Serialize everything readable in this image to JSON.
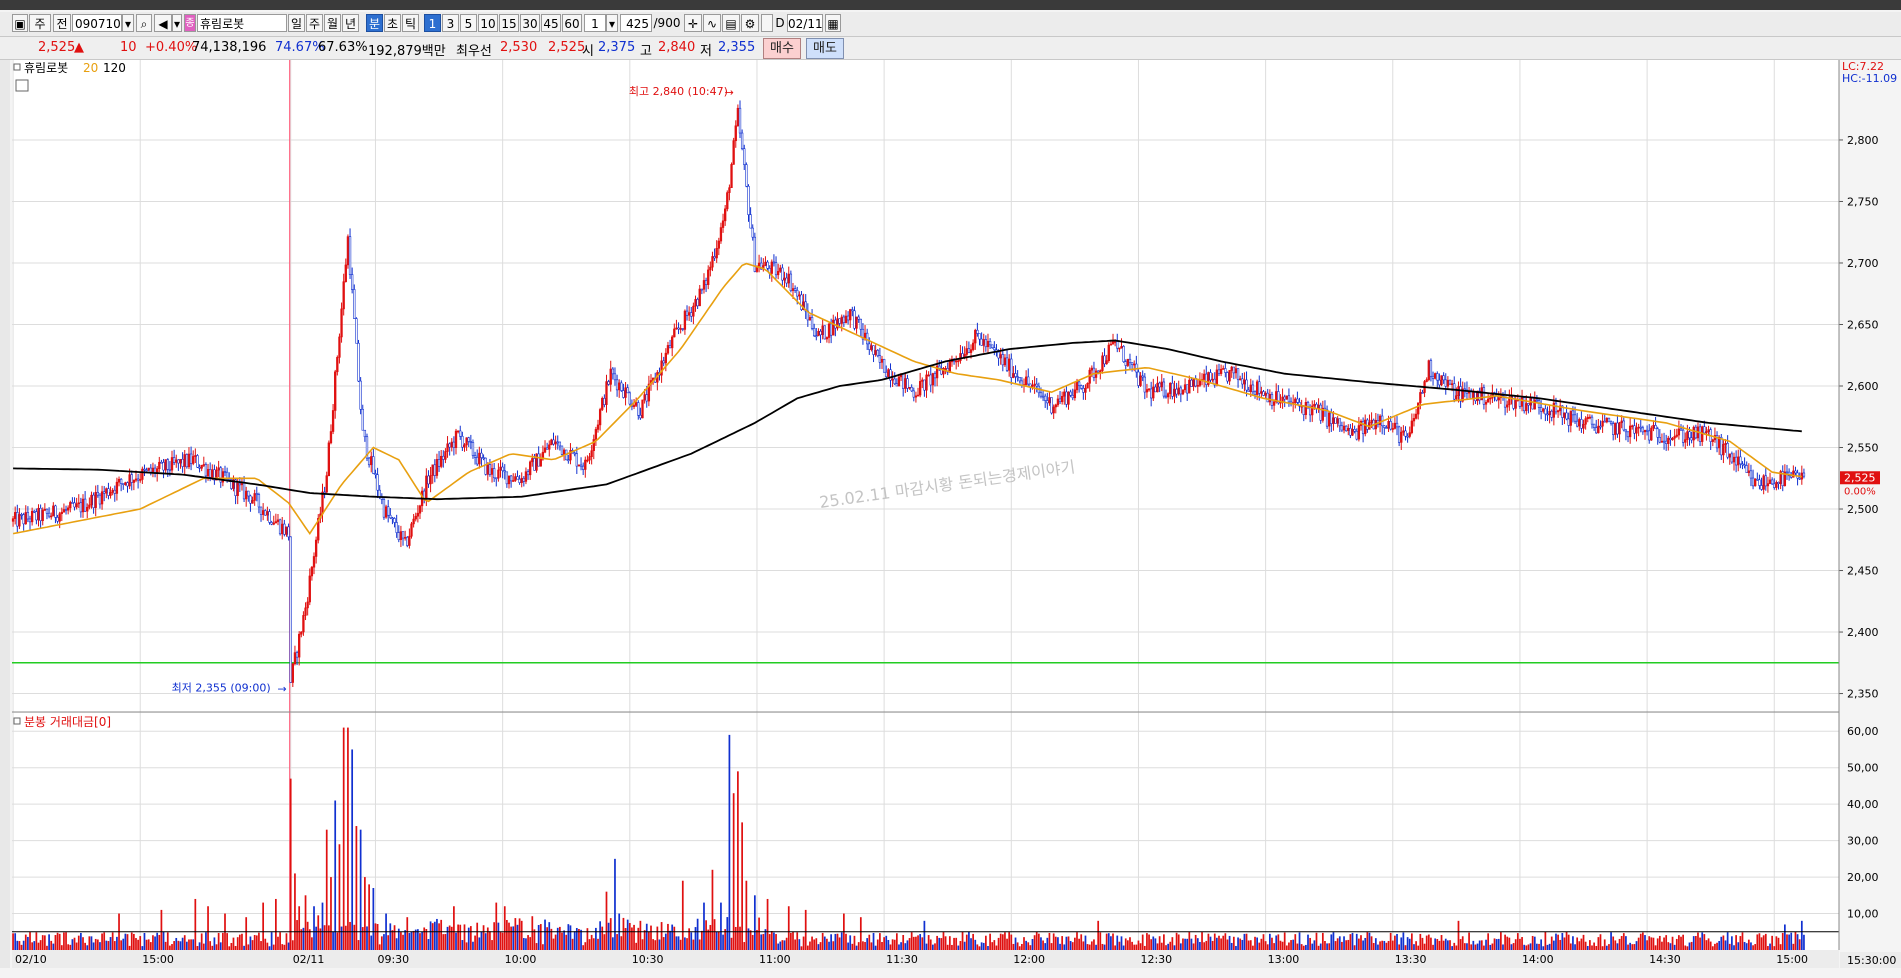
{
  "toolbar": {
    "period_tab": "주",
    "mode_tab": "전",
    "stock_code": "090710",
    "stock_name": "휴림로봇",
    "stock_badge": "종",
    "period_buttons": [
      "일",
      "주",
      "월",
      "년",
      "분",
      "초",
      "틱"
    ],
    "interval_buttons": [
      "1",
      "3",
      "5",
      "10",
      "15",
      "30",
      "45",
      "60"
    ],
    "interval_value": "1",
    "count_value": "425",
    "count_total": "/900",
    "date_value": "02/11",
    "checkbox_label": "D"
  },
  "quote": {
    "price": "2,525",
    "change_arrow": "▲",
    "change": "10",
    "change_pct": "+0.40%",
    "volume": "74,138,196",
    "ratio1": "74.67%",
    "ratio2": "67.63%",
    "amount": "192,879백만",
    "best_label": "최우선",
    "ask": "2,530",
    "bid": "2,525",
    "open_label": "시",
    "open": "2,375",
    "high_label": "고",
    "high": "2,840",
    "low_label": "저",
    "low": "2,355",
    "buy_button": "매수",
    "sell_button": "매도"
  },
  "colors": {
    "up": "#e01010",
    "down": "#1030d0",
    "ma20": "#e8a010",
    "ma120": "#000000",
    "support": "#22cc22",
    "grid": "#dddddd",
    "price_tag": "#e01010"
  },
  "chart_data": {
    "type": "candlestick",
    "legend": {
      "name": "휴림로봇",
      "ma_short": "20",
      "ma_long": "120"
    },
    "ylim": [
      2335,
      2865
    ],
    "y_ticks": [
      "2,350",
      "2,400",
      "2,450",
      "2,500",
      "2,550",
      "2,600",
      "2,650",
      "2,700",
      "2,750",
      "2,800"
    ],
    "y_tick_values": [
      2350,
      2400,
      2450,
      2500,
      2550,
      2600,
      2650,
      2700,
      2750,
      2800
    ],
    "right_labels": {
      "lc": "LC:7.22",
      "hc": "HC:-11.09"
    },
    "current_price_tag": "2,525",
    "current_pct": "0.00%",
    "current_price": 2525,
    "high_annotation": "최고 2,840 (10:47)",
    "low_annotation": "최저 2,355 (09:00)",
    "high_point": {
      "time": "10:47",
      "value": 2840
    },
    "low_point": {
      "time": "09:00",
      "value": 2355
    },
    "support_level": 2375,
    "watermark": "25.02.11 마감시황 돈되는경제이야기",
    "x_labels": [
      "02/10",
      "15:00",
      "02/11",
      "09:30",
      "10:00",
      "10:30",
      "11:00",
      "11:30",
      "12:00",
      "12:30",
      "13:00",
      "13:30",
      "14:00",
      "14:30",
      "15:00"
    ],
    "session_end_label": "15:30:00",
    "price_anchors": [
      {
        "t": 0,
        "v": 2490
      },
      {
        "t": 30,
        "v": 2500
      },
      {
        "t": 55,
        "v": 2525
      },
      {
        "t": 85,
        "v": 2540
      },
      {
        "t": 112,
        "v": 2510
      },
      {
        "t": 130,
        "v": 2480
      },
      {
        "t": 131,
        "v": 2360
      },
      {
        "t": 138,
        "v": 2420
      },
      {
        "t": 148,
        "v": 2530
      },
      {
        "t": 158,
        "v": 2720
      },
      {
        "t": 165,
        "v": 2560
      },
      {
        "t": 175,
        "v": 2500
      },
      {
        "t": 185,
        "v": 2470
      },
      {
        "t": 196,
        "v": 2525
      },
      {
        "t": 210,
        "v": 2560
      },
      {
        "t": 225,
        "v": 2530
      },
      {
        "t": 240,
        "v": 2525
      },
      {
        "t": 255,
        "v": 2555
      },
      {
        "t": 270,
        "v": 2535
      },
      {
        "t": 282,
        "v": 2610
      },
      {
        "t": 296,
        "v": 2580
      },
      {
        "t": 312,
        "v": 2640
      },
      {
        "t": 326,
        "v": 2680
      },
      {
        "t": 336,
        "v": 2740
      },
      {
        "t": 342,
        "v": 2820
      },
      {
        "t": 350,
        "v": 2700
      },
      {
        "t": 365,
        "v": 2690
      },
      {
        "t": 380,
        "v": 2640
      },
      {
        "t": 395,
        "v": 2660
      },
      {
        "t": 408,
        "v": 2620
      },
      {
        "t": 425,
        "v": 2595
      },
      {
        "t": 440,
        "v": 2615
      },
      {
        "t": 455,
        "v": 2640
      },
      {
        "t": 470,
        "v": 2615
      },
      {
        "t": 490,
        "v": 2585
      },
      {
        "t": 505,
        "v": 2600
      },
      {
        "t": 520,
        "v": 2635
      },
      {
        "t": 535,
        "v": 2595
      },
      {
        "t": 555,
        "v": 2600
      },
      {
        "t": 575,
        "v": 2610
      },
      {
        "t": 595,
        "v": 2590
      },
      {
        "t": 615,
        "v": 2580
      },
      {
        "t": 632,
        "v": 2560
      },
      {
        "t": 645,
        "v": 2575
      },
      {
        "t": 658,
        "v": 2555
      },
      {
        "t": 668,
        "v": 2615
      },
      {
        "t": 680,
        "v": 2595
      },
      {
        "t": 700,
        "v": 2590
      },
      {
        "t": 720,
        "v": 2585
      },
      {
        "t": 740,
        "v": 2570
      },
      {
        "t": 760,
        "v": 2565
      },
      {
        "t": 780,
        "v": 2560
      },
      {
        "t": 800,
        "v": 2560
      },
      {
        "t": 812,
        "v": 2540
      },
      {
        "t": 822,
        "v": 2520
      },
      {
        "t": 836,
        "v": 2525
      },
      {
        "t": 845,
        "v": 2525
      }
    ],
    "ma20_anchors": [
      {
        "t": 0,
        "v": 2480
      },
      {
        "t": 60,
        "v": 2500
      },
      {
        "t": 90,
        "v": 2525
      },
      {
        "t": 115,
        "v": 2525
      },
      {
        "t": 130,
        "v": 2505
      },
      {
        "t": 140,
        "v": 2480
      },
      {
        "t": 155,
        "v": 2520
      },
      {
        "t": 170,
        "v": 2550
      },
      {
        "t": 182,
        "v": 2540
      },
      {
        "t": 195,
        "v": 2505
      },
      {
        "t": 215,
        "v": 2530
      },
      {
        "t": 235,
        "v": 2545
      },
      {
        "t": 255,
        "v": 2540
      },
      {
        "t": 275,
        "v": 2555
      },
      {
        "t": 295,
        "v": 2590
      },
      {
        "t": 315,
        "v": 2630
      },
      {
        "t": 335,
        "v": 2680
      },
      {
        "t": 345,
        "v": 2700
      },
      {
        "t": 355,
        "v": 2695
      },
      {
        "t": 375,
        "v": 2660
      },
      {
        "t": 400,
        "v": 2640
      },
      {
        "t": 425,
        "v": 2620
      },
      {
        "t": 445,
        "v": 2610
      },
      {
        "t": 465,
        "v": 2605
      },
      {
        "t": 490,
        "v": 2595
      },
      {
        "t": 510,
        "v": 2610
      },
      {
        "t": 535,
        "v": 2615
      },
      {
        "t": 560,
        "v": 2605
      },
      {
        "t": 590,
        "v": 2590
      },
      {
        "t": 620,
        "v": 2580
      },
      {
        "t": 640,
        "v": 2567
      },
      {
        "t": 665,
        "v": 2585
      },
      {
        "t": 700,
        "v": 2592
      },
      {
        "t": 740,
        "v": 2580
      },
      {
        "t": 780,
        "v": 2570
      },
      {
        "t": 810,
        "v": 2555
      },
      {
        "t": 830,
        "v": 2530
      },
      {
        "t": 845,
        "v": 2526
      }
    ],
    "ma120_anchors": [
      {
        "t": 0,
        "v": 2533
      },
      {
        "t": 40,
        "v": 2532
      },
      {
        "t": 80,
        "v": 2528
      },
      {
        "t": 115,
        "v": 2520
      },
      {
        "t": 140,
        "v": 2513
      },
      {
        "t": 170,
        "v": 2510
      },
      {
        "t": 200,
        "v": 2508
      },
      {
        "t": 240,
        "v": 2510
      },
      {
        "t": 280,
        "v": 2520
      },
      {
        "t": 320,
        "v": 2545
      },
      {
        "t": 350,
        "v": 2570
      },
      {
        "t": 370,
        "v": 2590
      },
      {
        "t": 390,
        "v": 2600
      },
      {
        "t": 410,
        "v": 2605
      },
      {
        "t": 440,
        "v": 2620
      },
      {
        "t": 470,
        "v": 2630
      },
      {
        "t": 500,
        "v": 2635
      },
      {
        "t": 520,
        "v": 2637
      },
      {
        "t": 545,
        "v": 2630
      },
      {
        "t": 570,
        "v": 2620
      },
      {
        "t": 600,
        "v": 2610
      },
      {
        "t": 640,
        "v": 2603
      },
      {
        "t": 680,
        "v": 2597
      },
      {
        "t": 720,
        "v": 2590
      },
      {
        "t": 760,
        "v": 2580
      },
      {
        "t": 800,
        "v": 2570
      },
      {
        "t": 845,
        "v": 2563
      }
    ],
    "total_bars": 846,
    "x_label_positions": [
      0,
      60,
      131,
      171,
      231,
      291,
      351,
      411,
      471,
      531,
      591,
      651,
      711,
      771,
      831
    ],
    "volume_panel": {
      "title": "분봉 거래대금[0]",
      "ylim": [
        0,
        65
      ],
      "y_ticks": [
        "10,00",
        "20,00",
        "30,00",
        "40,00",
        "50,00",
        "60,00"
      ],
      "y_tick_values": [
        10,
        20,
        30,
        40,
        50,
        60
      ],
      "ref_level": 5,
      "spikes": [
        {
          "t": 131,
          "v": 47
        },
        {
          "t": 133,
          "v": 21
        },
        {
          "t": 135,
          "v": 12
        },
        {
          "t": 138,
          "v": 15
        },
        {
          "t": 142,
          "v": 12
        },
        {
          "t": 146,
          "v": 13
        },
        {
          "t": 148,
          "v": 33
        },
        {
          "t": 150,
          "v": 20
        },
        {
          "t": 152,
          "v": 41
        },
        {
          "t": 154,
          "v": 29
        },
        {
          "t": 156,
          "v": 61
        },
        {
          "t": 158,
          "v": 61
        },
        {
          "t": 160,
          "v": 55
        },
        {
          "t": 162,
          "v": 34
        },
        {
          "t": 164,
          "v": 33
        },
        {
          "t": 166,
          "v": 20
        },
        {
          "t": 168,
          "v": 18
        },
        {
          "t": 170,
          "v": 17
        },
        {
          "t": 176,
          "v": 10
        },
        {
          "t": 186,
          "v": 9
        },
        {
          "t": 208,
          "v": 12
        },
        {
          "t": 228,
          "v": 13
        },
        {
          "t": 232,
          "v": 12
        },
        {
          "t": 240,
          "v": 8
        },
        {
          "t": 280,
          "v": 16
        },
        {
          "t": 284,
          "v": 25
        },
        {
          "t": 286,
          "v": 10
        },
        {
          "t": 296,
          "v": 8
        },
        {
          "t": 316,
          "v": 19
        },
        {
          "t": 326,
          "v": 13
        },
        {
          "t": 330,
          "v": 22
        },
        {
          "t": 334,
          "v": 13
        },
        {
          "t": 338,
          "v": 59
        },
        {
          "t": 340,
          "v": 43
        },
        {
          "t": 342,
          "v": 49
        },
        {
          "t": 344,
          "v": 35
        },
        {
          "t": 346,
          "v": 19
        },
        {
          "t": 350,
          "v": 15
        },
        {
          "t": 356,
          "v": 14
        },
        {
          "t": 366,
          "v": 12
        },
        {
          "t": 374,
          "v": 11
        },
        {
          "t": 392,
          "v": 10
        },
        {
          "t": 400,
          "v": 9
        },
        {
          "t": 430,
          "v": 8
        },
        {
          "t": 50,
          "v": 10
        },
        {
          "t": 70,
          "v": 11
        },
        {
          "t": 86,
          "v": 14
        },
        {
          "t": 92,
          "v": 12
        },
        {
          "t": 100,
          "v": 10
        },
        {
          "t": 110,
          "v": 9
        },
        {
          "t": 118,
          "v": 13
        },
        {
          "t": 124,
          "v": 14
        },
        {
          "t": 512,
          "v": 8
        },
        {
          "t": 682,
          "v": 8
        },
        {
          "t": 836,
          "v": 7
        },
        {
          "t": 844,
          "v": 8
        }
      ]
    }
  }
}
